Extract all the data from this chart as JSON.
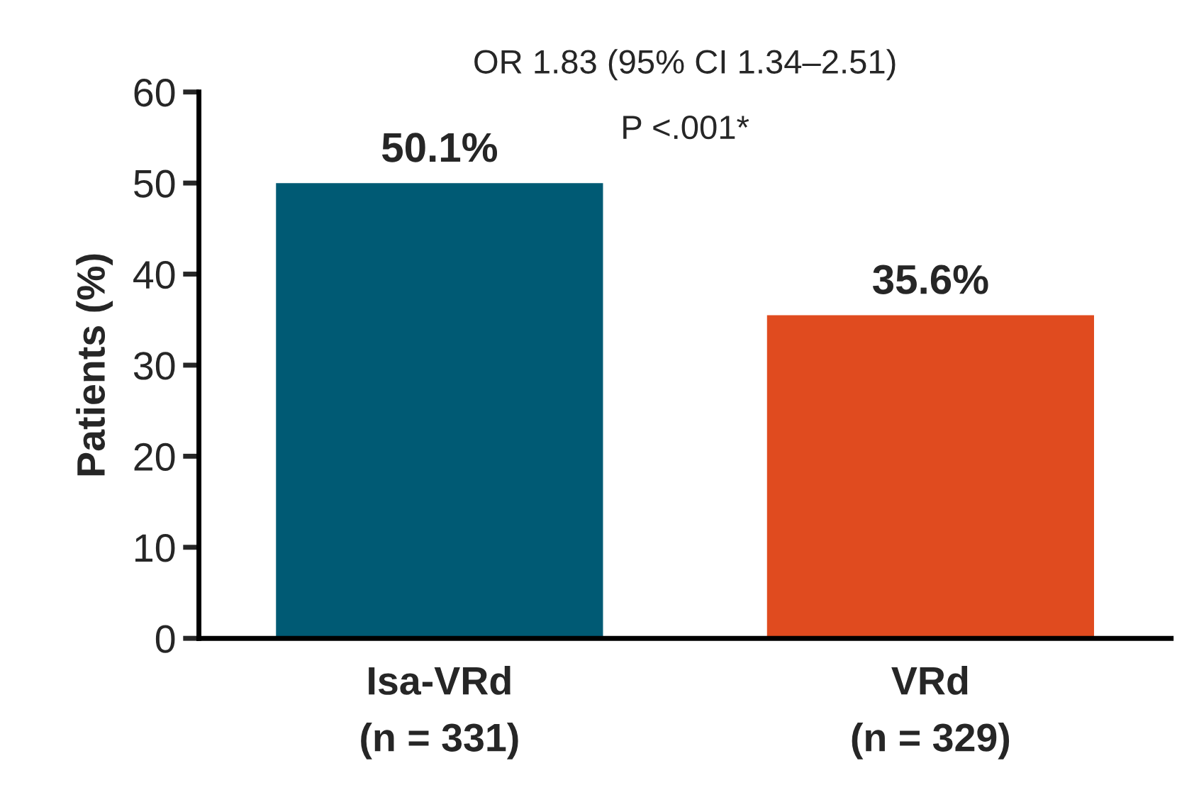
{
  "chart_data": {
    "type": "bar",
    "ylabel": "Patients (%)",
    "categories": [
      "Isa-VRd\n(n = 331)",
      "VRd\n(n = 329)"
    ],
    "values": [
      50.1,
      35.6
    ],
    "colors": [
      "#005a74",
      "#e04b1f"
    ],
    "value_labels": [
      "50.1%",
      "35.6%"
    ],
    "ylim": [
      0,
      60
    ],
    "yticks": [
      0,
      10,
      20,
      30,
      40,
      50,
      60
    ],
    "annotations": [
      "OR 1.83 (95% CI 1.34–2.51)",
      "P <.001*"
    ],
    "grid": false,
    "legend": false
  }
}
